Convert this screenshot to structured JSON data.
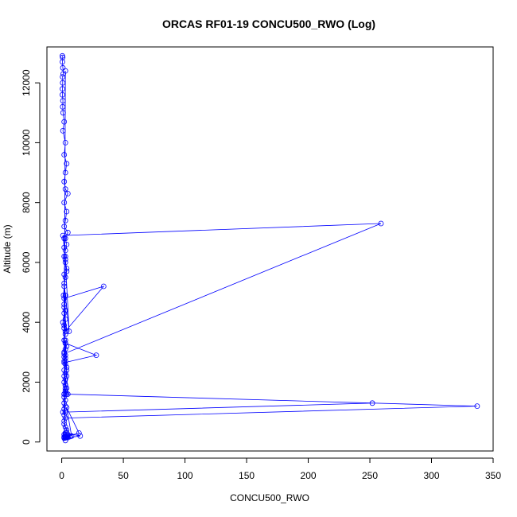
{
  "chart_data": {
    "type": "line",
    "title": "ORCAS RF01-19 CONCU500_RWO (Log)",
    "xlabel": "CONCU500_RWO",
    "ylabel": "Altitude (m)",
    "xlim": [
      -12,
      350
    ],
    "ylim": [
      -300,
      13200
    ],
    "xticks": [
      0,
      50,
      100,
      150,
      200,
      250,
      300,
      350
    ],
    "yticks": [
      0,
      2000,
      4000,
      6000,
      8000,
      10000,
      12000
    ],
    "grid": false,
    "series": [
      {
        "color": "#0000ff",
        "markers": "open-circle",
        "x": [
          0.5,
          0.8,
          0.6,
          0.9,
          1.2,
          0.7,
          0.8,
          0.6,
          0.5,
          1.0,
          0.8,
          1.1,
          2,
          1,
          3,
          2,
          4,
          3,
          2,
          3,
          5,
          2,
          4,
          3,
          2,
          5,
          3,
          4,
          3,
          2,
          3,
          4,
          3,
          2,
          1.5,
          2,
          2,
          1,
          2,
          3,
          2,
          3,
          4,
          3,
          2,
          3,
          3,
          2,
          3,
          4,
          2,
          3,
          4,
          3,
          2,
          3,
          4,
          3,
          3,
          2,
          3,
          2,
          3,
          2,
          1,
          2,
          3,
          2,
          259,
          1,
          2,
          3,
          4,
          2,
          3,
          2,
          3,
          4,
          2,
          3,
          6,
          2,
          3,
          2,
          3,
          34,
          2,
          3,
          2,
          28,
          3,
          2,
          4,
          3,
          2,
          3,
          2,
          5,
          3,
          2,
          337,
          3,
          2,
          4,
          3,
          2,
          3,
          4,
          252,
          3,
          2,
          3,
          8,
          4,
          14,
          3,
          5,
          15,
          4,
          3,
          5,
          4,
          3,
          4,
          2,
          3,
          5,
          4,
          3,
          2,
          3,
          7,
          4,
          3,
          2,
          3
        ],
        "y": [
          12900,
          12850,
          12700,
          12500,
          12300,
          12200,
          12000,
          11800,
          11600,
          11400,
          11200,
          11000,
          10700,
          10400,
          10000,
          9600,
          9300,
          9000,
          8700,
          8450,
          8300,
          8000,
          7700,
          7400,
          7200,
          7000,
          6800,
          6600,
          6400,
          6200,
          6000,
          5800,
          5500,
          5200,
          4900,
          4600,
          4300,
          4000,
          3800,
          3600,
          3400,
          3300,
          3200,
          3100,
          3000,
          2900,
          2800,
          2700,
          2600,
          2500,
          2400,
          2300,
          2200,
          2100,
          2000,
          1900,
          1800,
          1700,
          1600,
          1500,
          1400,
          1300,
          1200,
          1100,
          1000,
          900,
          12400,
          2950,
          7300,
          6900,
          6500,
          6100,
          5700,
          5300,
          4900,
          4500,
          4100,
          3700,
          3900,
          4900,
          3700,
          6800,
          6200,
          5600,
          3700,
          5200,
          4800,
          4400,
          2650,
          2900,
          3300,
          2850,
          2400,
          1900,
          1600,
          2700,
          2200,
          1600,
          3400,
          1600,
          1200,
          800,
          600,
          400,
          300,
          250,
          1780,
          1600,
          1300,
          1000,
          700,
          500,
          200,
          1150,
          300,
          170,
          150,
          200,
          300,
          250,
          220,
          180,
          160,
          150,
          170,
          200,
          180,
          160,
          150,
          140,
          160,
          180,
          150,
          140,
          130,
          50
        ]
      }
    ]
  }
}
